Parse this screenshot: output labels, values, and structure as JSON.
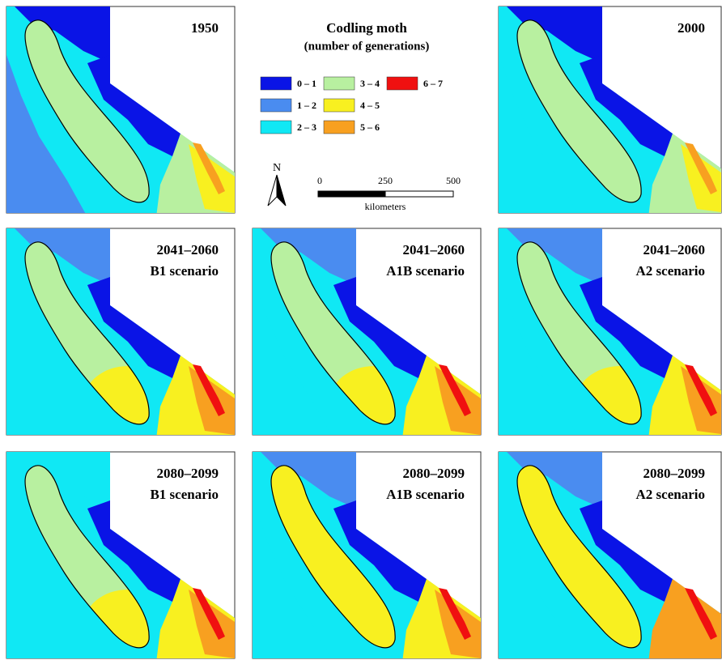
{
  "legend": {
    "title": "Codling moth",
    "subtitle": "(number of generations)",
    "items": [
      {
        "label": "0 – 1",
        "color": "#0a14e6"
      },
      {
        "label": "1 – 2",
        "color": "#4a8cf0"
      },
      {
        "label": "2 – 3",
        "color": "#10e8f4"
      },
      {
        "label": "3 – 4",
        "color": "#b8f0a0"
      },
      {
        "label": "4 – 5",
        "color": "#f8f020"
      },
      {
        "label": "5 – 6",
        "color": "#f8a020"
      },
      {
        "label": "6 – 7",
        "color": "#f01010"
      }
    ]
  },
  "north": "N",
  "scale_bar": {
    "ticks": [
      "0",
      "250",
      "500"
    ],
    "unit": "kilometers"
  },
  "panels": [
    {
      "lines": [
        "1950"
      ]
    },
    {
      "lines": [
        "2000"
      ]
    },
    {
      "lines": [
        "2041–2060",
        "B1 scenario"
      ]
    },
    {
      "lines": [
        "2041–2060",
        "A1B scenario"
      ]
    },
    {
      "lines": [
        "2041–2060",
        "A2 scenario"
      ]
    },
    {
      "lines": [
        "2080–2099",
        "B1 scenario"
      ]
    },
    {
      "lines": [
        "2080–2099",
        "A1B scenario"
      ]
    },
    {
      "lines": [
        "2080–2099",
        "A2 scenario"
      ]
    }
  ]
}
